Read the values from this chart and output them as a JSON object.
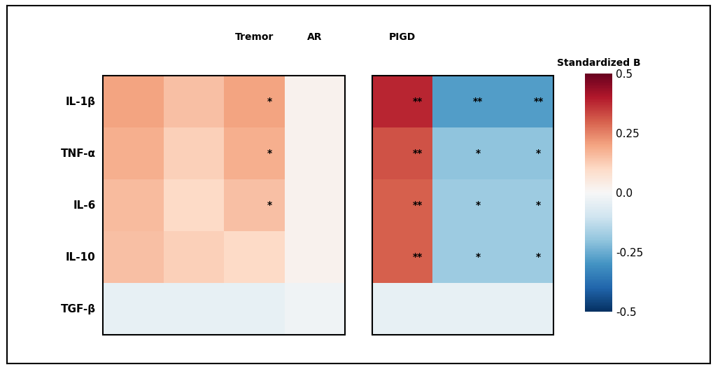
{
  "rows": [
    "IL-1β",
    "TNF-α",
    "IL-6",
    "IL-10",
    "TGF-β"
  ],
  "values": [
    [
      0.2,
      0.15,
      0.2,
      0.02,
      0.38,
      -0.28,
      -0.28
    ],
    [
      0.18,
      0.12,
      0.18,
      0.02,
      0.32,
      -0.2,
      -0.2
    ],
    [
      0.16,
      0.1,
      0.15,
      0.02,
      0.3,
      -0.18,
      -0.18
    ],
    [
      0.15,
      0.12,
      0.1,
      0.02,
      0.3,
      -0.18,
      -0.18
    ],
    [
      -0.04,
      -0.04,
      -0.04,
      -0.02,
      -0.04,
      -0.04,
      -0.04
    ]
  ],
  "annotations": [
    [
      "",
      "",
      "*",
      "",
      "**",
      "**",
      "**"
    ],
    [
      "",
      "",
      "*",
      "",
      "**",
      "*",
      "*"
    ],
    [
      "",
      "",
      "*",
      "",
      "**",
      "*",
      "*"
    ],
    [
      "",
      "",
      "",
      "",
      "**",
      "*",
      "*"
    ],
    [
      "",
      "",
      "",
      "",
      "",
      "",
      ""
    ]
  ],
  "vmin": -0.5,
  "vmax": 0.5,
  "colorbar_ticks": [
    0.5,
    0.25,
    0.0,
    -0.25,
    -0.5
  ],
  "colorbar_label": "Standardized B",
  "background_color": "#ffffff"
}
